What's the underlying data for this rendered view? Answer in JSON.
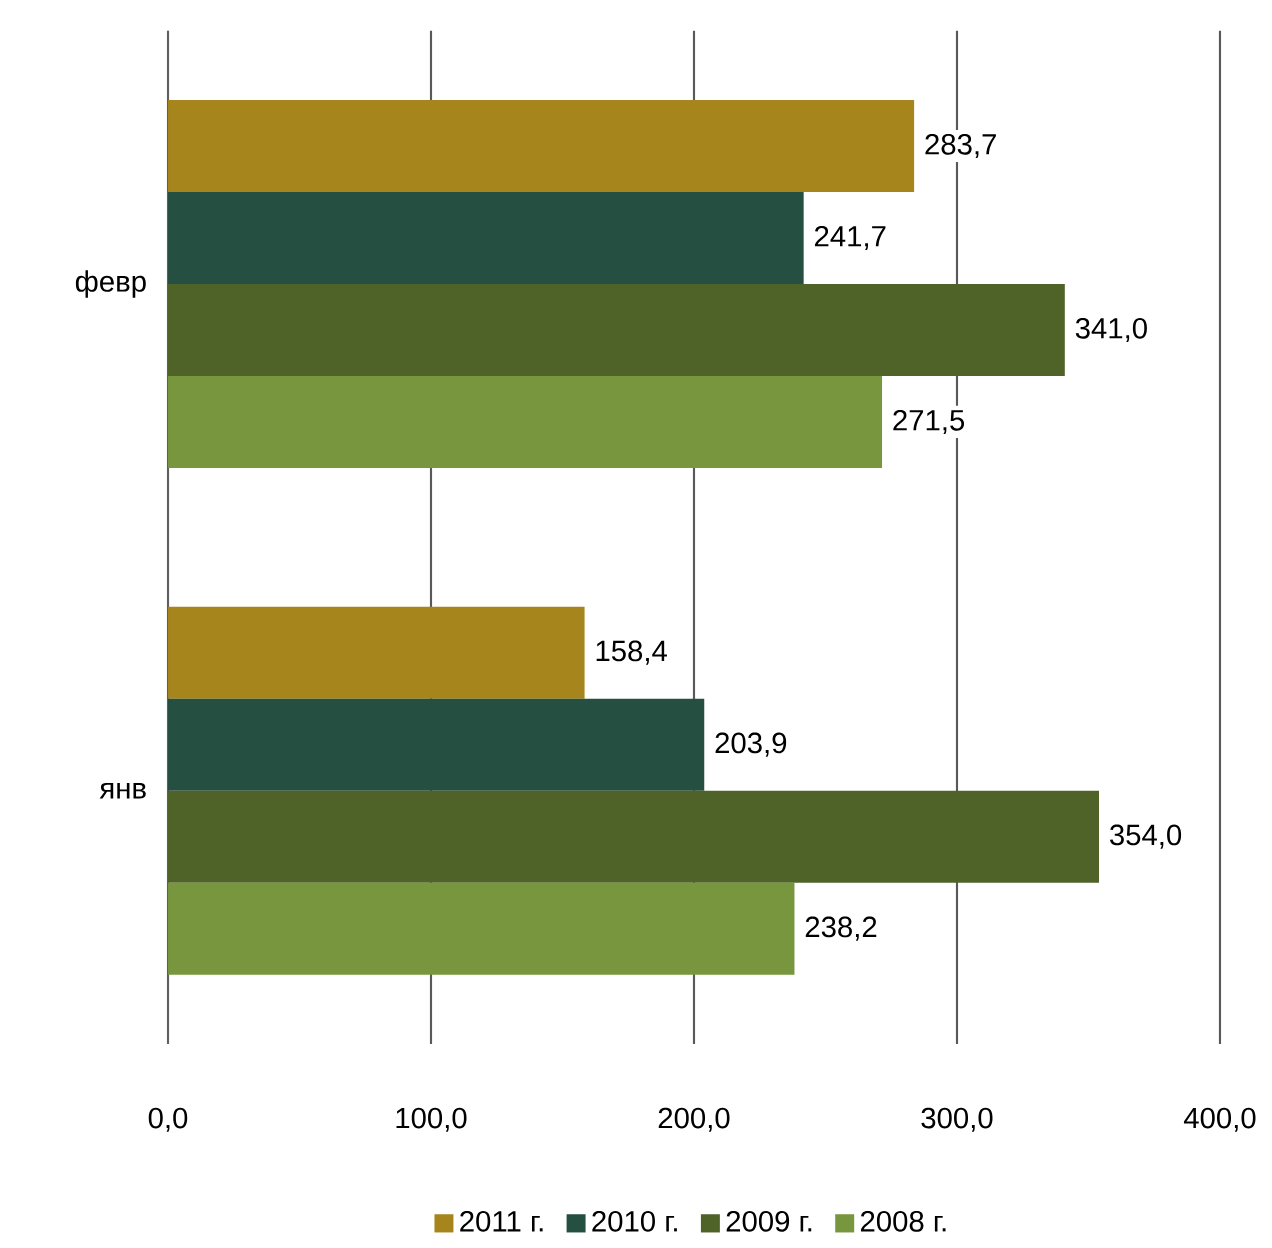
{
  "chart_data": {
    "type": "bar",
    "orientation": "horizontal",
    "categories": [
      "февр",
      "янв"
    ],
    "series": [
      {
        "name": "2011 г.",
        "color": "#a6851c",
        "values": [
          283.7,
          158.4
        ],
        "value_labels": [
          "283,7",
          "158,4"
        ]
      },
      {
        "name": "2010 г.",
        "color": "#254f40",
        "values": [
          241.7,
          203.9
        ],
        "value_labels": [
          "241,7",
          "203,9"
        ]
      },
      {
        "name": "2009 г.",
        "color": "#4f6228",
        "values": [
          341.0,
          354.0
        ],
        "value_labels": [
          "341,0",
          "354,0"
        ]
      },
      {
        "name": "2008 г.",
        "color": "#77963d",
        "values": [
          271.5,
          238.2
        ],
        "value_labels": [
          "271,5",
          "238,2"
        ]
      }
    ],
    "xlim": [
      0,
      400
    ],
    "xticks": [
      {
        "value": 0,
        "label": "0,0"
      },
      {
        "value": 100,
        "label": "100,0"
      },
      {
        "value": 200,
        "label": "200,0"
      },
      {
        "value": 300,
        "label": "300,0"
      },
      {
        "value": 400,
        "label": "400,0"
      }
    ],
    "grid": "x",
    "legend": "bottom"
  }
}
